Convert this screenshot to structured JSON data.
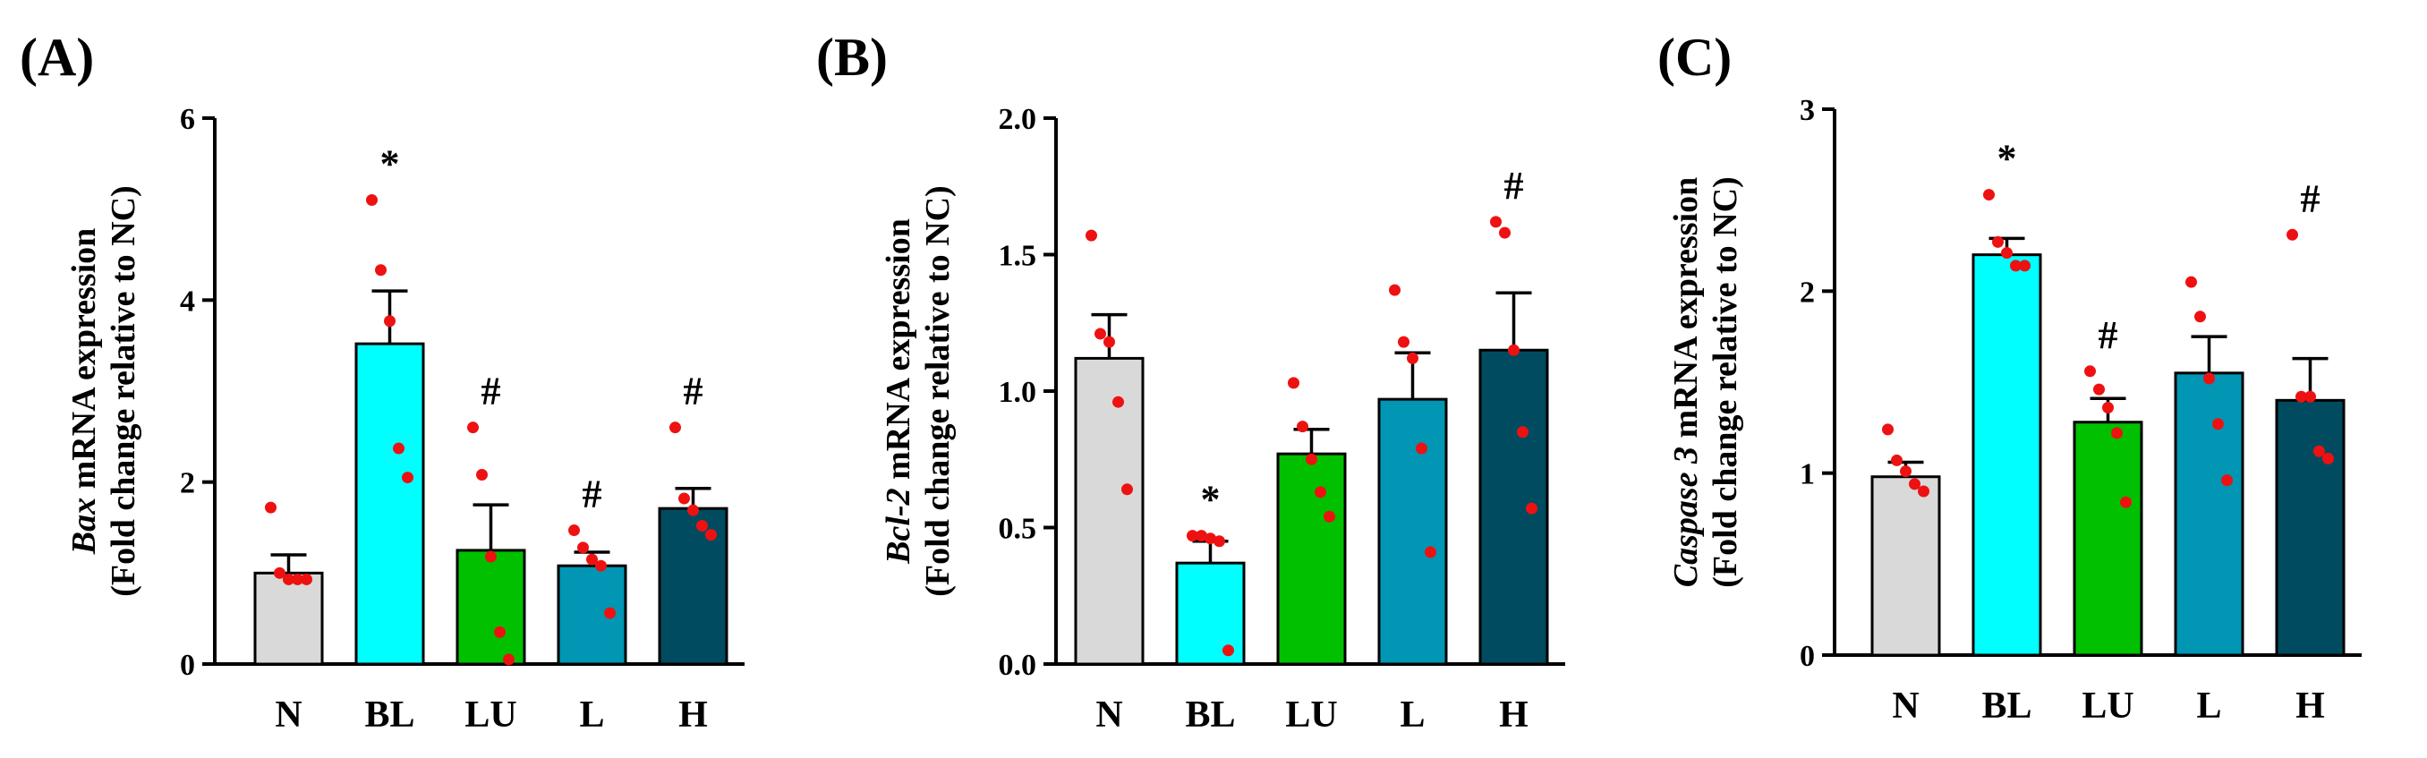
{
  "chart_data": [
    {
      "type": "bar",
      "panel": "(A)",
      "categories": [
        "N",
        "BL",
        "LU",
        "L",
        "H"
      ],
      "values": [
        1.0,
        3.52,
        1.25,
        1.08,
        1.71
      ],
      "errors": [
        0.2,
        0.58,
        0.5,
        0.15,
        0.22
      ],
      "points": [
        [
          1.72,
          1.0,
          0.93,
          0.93,
          0.93
        ],
        [
          5.1,
          4.33,
          3.77,
          2.37,
          2.05
        ],
        [
          2.6,
          2.08,
          1.18,
          0.35,
          0.05
        ],
        [
          1.47,
          1.28,
          1.15,
          1.08,
          0.56
        ],
        [
          2.6,
          1.82,
          1.69,
          1.52,
          1.42
        ]
      ],
      "significance": [
        "",
        "*",
        "#",
        "#",
        "#"
      ],
      "colors": [
        "#d9d9d9",
        "#00ffff",
        "#00c000",
        "#0096b4",
        "#004b5f"
      ],
      "point_color": "#ee1111",
      "ylabel_italic": "Bax",
      "ylabel_rest": " mRNA expression",
      "ylabel_line2": "(Fold change relative to NC)",
      "ylim": [
        0,
        6
      ],
      "yticks": [
        0,
        2,
        4,
        6
      ],
      "ytick_labels": [
        "0",
        "2",
        "4",
        "6"
      ]
    },
    {
      "type": "bar",
      "panel": "(B)",
      "categories": [
        "N",
        "BL",
        "LU",
        "L",
        "H"
      ],
      "values": [
        1.12,
        0.37,
        0.77,
        0.97,
        1.15
      ],
      "errors": [
        0.16,
        0.08,
        0.09,
        0.17,
        0.21
      ],
      "points": [
        [
          1.57,
          1.21,
          1.18,
          0.96,
          0.64
        ],
        [
          0.47,
          0.47,
          0.46,
          0.45,
          0.05
        ],
        [
          1.03,
          0.87,
          0.75,
          0.63,
          0.54
        ],
        [
          1.37,
          1.18,
          1.12,
          0.79,
          0.41
        ],
        [
          1.62,
          1.58,
          1.15,
          0.85,
          0.57
        ]
      ],
      "significance": [
        "",
        "*",
        "",
        "",
        "#"
      ],
      "colors": [
        "#d9d9d9",
        "#00ffff",
        "#00c000",
        "#0096b4",
        "#004b5f"
      ],
      "point_color": "#ee1111",
      "ylabel_italic": "Bcl-2",
      "ylabel_rest": " mRNA expression",
      "ylabel_line2": "(Fold change relative to NC)",
      "ylim": [
        0,
        2
      ],
      "yticks": [
        0,
        0.5,
        1,
        1.5,
        2
      ],
      "ytick_labels": [
        "0.0",
        "0.5",
        "1.0",
        "1.5",
        "2.0"
      ]
    },
    {
      "type": "bar",
      "panel": "(C)",
      "categories": [
        "N",
        "BL",
        "LU",
        "L",
        "H"
      ],
      "values": [
        0.98,
        2.2,
        1.28,
        1.55,
        1.4
      ],
      "errors": [
        0.08,
        0.09,
        0.13,
        0.2,
        0.23
      ],
      "points": [
        [
          1.24,
          1.07,
          1.01,
          0.94,
          0.9
        ],
        [
          2.53,
          2.27,
          2.21,
          2.14,
          2.14
        ],
        [
          1.56,
          1.46,
          1.36,
          1.22,
          0.84
        ],
        [
          2.05,
          1.86,
          1.52,
          1.27,
          0.96
        ],
        [
          2.31,
          1.42,
          1.42,
          1.12,
          1.08
        ]
      ],
      "significance": [
        "",
        "*",
        "#",
        "",
        "#"
      ],
      "colors": [
        "#d9d9d9",
        "#00ffff",
        "#00c000",
        "#0096b4",
        "#004b5f"
      ],
      "point_color": "#ee1111",
      "ylabel_italic": "Caspase 3",
      "ylabel_rest": " mRNA expression",
      "ylabel_line2": "(Fold change relative to NC)",
      "ylim": [
        0,
        3
      ],
      "yticks": [
        0,
        1,
        2,
        3
      ],
      "ytick_labels": [
        "0",
        "1",
        "2",
        "3"
      ]
    }
  ]
}
